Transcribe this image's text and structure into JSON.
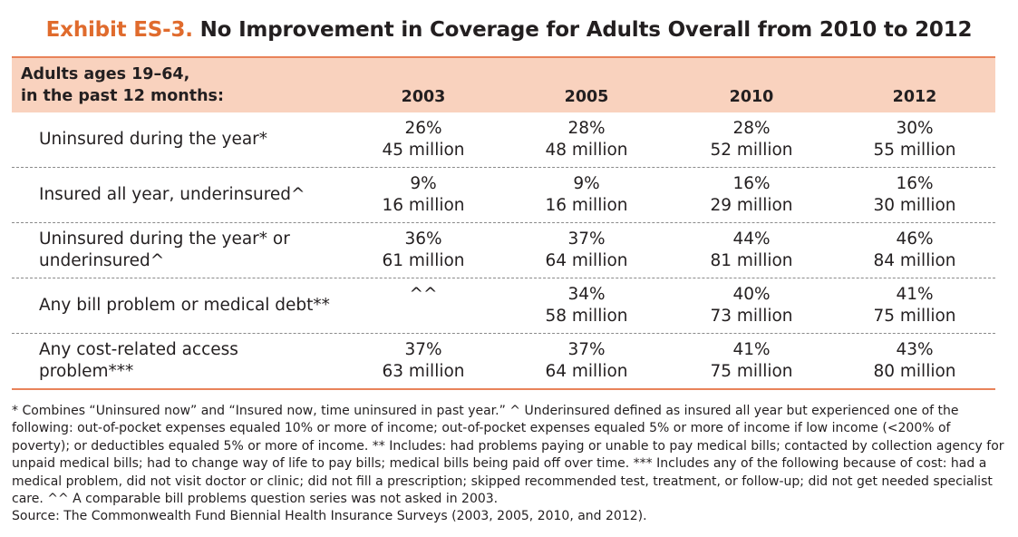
{
  "title": {
    "label": "Exhibit ES-3.",
    "text": "No Improvement in Coverage for Adults Overall from 2010 to 2012"
  },
  "table": {
    "stub_header_line1": "Adults ages 19–64,",
    "stub_header_line2": "in the past 12 months:",
    "years": [
      "2003",
      "2005",
      "2010",
      "2012"
    ],
    "rows": [
      {
        "label": "Uninsured during the year*",
        "cells": [
          {
            "pct": "26%",
            "millions": "45 million"
          },
          {
            "pct": "28%",
            "millions": "48 million"
          },
          {
            "pct": "28%",
            "millions": "52 million"
          },
          {
            "pct": "30%",
            "millions": "55 million"
          }
        ]
      },
      {
        "label": "Insured all year, underinsured^",
        "cells": [
          {
            "pct": "9%",
            "millions": "16 million"
          },
          {
            "pct": "9%",
            "millions": "16 million"
          },
          {
            "pct": "16%",
            "millions": "29 million"
          },
          {
            "pct": "16%",
            "millions": "30 million"
          }
        ]
      },
      {
        "label": "Uninsured during the year* or underinsured^",
        "cells": [
          {
            "pct": "36%",
            "millions": "61 million"
          },
          {
            "pct": "37%",
            "millions": "64 million"
          },
          {
            "pct": "44%",
            "millions": "81 million"
          },
          {
            "pct": "46%",
            "millions": "84 million"
          }
        ]
      },
      {
        "label": "Any bill problem or medical debt**",
        "cells": [
          {
            "pct": "^^",
            "millions": ""
          },
          {
            "pct": "34%",
            "millions": "58 million"
          },
          {
            "pct": "40%",
            "millions": "73 million"
          },
          {
            "pct": "41%",
            "millions": "75 million"
          }
        ]
      },
      {
        "label": "Any cost-related access problem***",
        "cells": [
          {
            "pct": "37%",
            "millions": "63 million"
          },
          {
            "pct": "37%",
            "millions": "64 million"
          },
          {
            "pct": "41%",
            "millions": "75 million"
          },
          {
            "pct": "43%",
            "millions": "80 million"
          }
        ]
      }
    ]
  },
  "footnotes": {
    "notes": "* Combines “Uninsured now” and “Insured now, time uninsured in past year.” ^ Underinsured defined as insured all year but experienced one of the following: out-of-pocket expenses equaled 10% or more of income; out-of-pocket expenses equaled 5% or more of income if low income (<200% of poverty); or deductibles equaled 5% or more of income. ** Includes: had problems paying or unable to pay medical bills; contacted by collection agency for unpaid medical bills; had to change way of life to pay bills; medical bills being paid off over time. *** Includes any of the following because of cost: had a medical problem, did not visit doctor or clinic; did not fill a prescription; skipped recommended test, treatment, or follow-up; did not get needed specialist care. ^^ A comparable bill problems question series was not asked in 2003.",
    "source": "Source: The Commonwealth Fund Biennial Health Insurance Surveys (2003, 2005, 2010, and 2012)."
  },
  "colors": {
    "accent_orange": "#e06b2d",
    "header_fill": "#f9d2be",
    "rule_orange": "#e9835a",
    "text": "#231f20"
  }
}
